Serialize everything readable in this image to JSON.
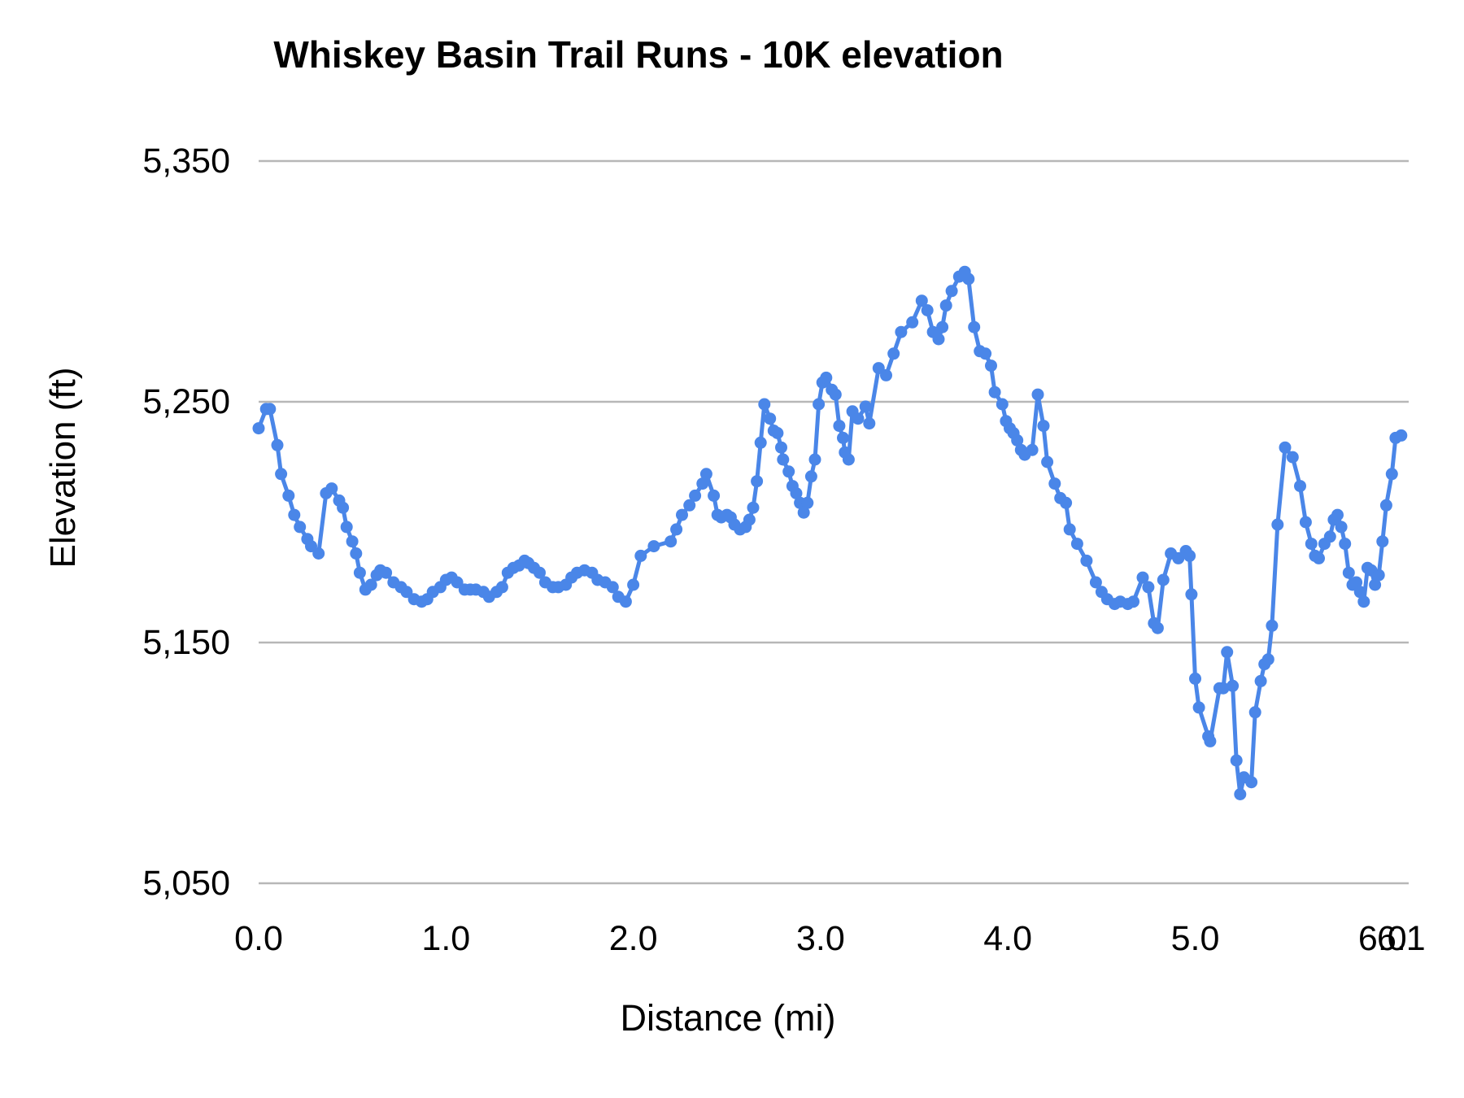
{
  "chart_data": {
    "type": "line",
    "title": "Whiskey Basin Trail Runs - 10K elevation",
    "xlabel": "Distance (mi)",
    "ylabel": "Elevation (ft)",
    "xlim": [
      0,
      6.1
    ],
    "ylim": [
      5050,
      5350
    ],
    "grid": "horizontal",
    "legend": "none",
    "series_color": "#4a86e8",
    "gridline_color": "#b7b7b7",
    "x_ticks": [
      {
        "value": 0,
        "label": "0.0"
      },
      {
        "value": 1,
        "label": "1.0"
      },
      {
        "value": 2,
        "label": "2.0"
      },
      {
        "value": 3,
        "label": "3.0"
      },
      {
        "value": 4,
        "label": "4.0"
      },
      {
        "value": 5,
        "label": "5.0"
      },
      {
        "value": 6,
        "label": "6.0"
      },
      {
        "value": 6.1,
        "label": "6.1"
      }
    ],
    "y_ticks": [
      {
        "value": 5050,
        "label": "5,050"
      },
      {
        "value": 5150,
        "label": "5,150"
      },
      {
        "value": 5250,
        "label": "5,250"
      },
      {
        "value": 5350,
        "label": "5,350"
      }
    ],
    "points": [
      [
        0.0,
        5239
      ],
      [
        0.04,
        5247
      ],
      [
        0.06,
        5247
      ],
      [
        0.1,
        5232
      ],
      [
        0.12,
        5220
      ],
      [
        0.16,
        5211
      ],
      [
        0.19,
        5203
      ],
      [
        0.22,
        5198
      ],
      [
        0.26,
        5193
      ],
      [
        0.28,
        5190
      ],
      [
        0.32,
        5187
      ],
      [
        0.36,
        5212
      ],
      [
        0.39,
        5214
      ],
      [
        0.43,
        5209
      ],
      [
        0.45,
        5206
      ],
      [
        0.47,
        5198
      ],
      [
        0.5,
        5192
      ],
      [
        0.52,
        5187
      ],
      [
        0.54,
        5179
      ],
      [
        0.57,
        5172
      ],
      [
        0.6,
        5174
      ],
      [
        0.63,
        5178
      ],
      [
        0.65,
        5180
      ],
      [
        0.68,
        5179
      ],
      [
        0.72,
        5175
      ],
      [
        0.76,
        5173
      ],
      [
        0.79,
        5171
      ],
      [
        0.83,
        5168
      ],
      [
        0.87,
        5167
      ],
      [
        0.9,
        5168
      ],
      [
        0.93,
        5171
      ],
      [
        0.97,
        5173
      ],
      [
        1.0,
        5176
      ],
      [
        1.03,
        5177
      ],
      [
        1.06,
        5175
      ],
      [
        1.1,
        5172
      ],
      [
        1.13,
        5172
      ],
      [
        1.16,
        5172
      ],
      [
        1.2,
        5171
      ],
      [
        1.23,
        5169
      ],
      [
        1.27,
        5171
      ],
      [
        1.3,
        5173
      ],
      [
        1.33,
        5179
      ],
      [
        1.36,
        5181
      ],
      [
        1.39,
        5182
      ],
      [
        1.42,
        5184
      ],
      [
        1.44,
        5183
      ],
      [
        1.47,
        5181
      ],
      [
        1.5,
        5179
      ],
      [
        1.53,
        5175
      ],
      [
        1.57,
        5173
      ],
      [
        1.6,
        5173
      ],
      [
        1.64,
        5174
      ],
      [
        1.67,
        5177
      ],
      [
        1.7,
        5179
      ],
      [
        1.74,
        5180
      ],
      [
        1.78,
        5179
      ],
      [
        1.81,
        5176
      ],
      [
        1.85,
        5175
      ],
      [
        1.89,
        5173
      ],
      [
        1.92,
        5169
      ],
      [
        1.96,
        5167
      ],
      [
        2.0,
        5174
      ],
      [
        2.04,
        5186
      ],
      [
        2.11,
        5190
      ],
      [
        2.2,
        5192
      ],
      [
        2.23,
        5197
      ],
      [
        2.26,
        5203
      ],
      [
        2.3,
        5207
      ],
      [
        2.33,
        5211
      ],
      [
        2.37,
        5216
      ],
      [
        2.39,
        5220
      ],
      [
        2.43,
        5211
      ],
      [
        2.45,
        5203
      ],
      [
        2.47,
        5202
      ],
      [
        2.5,
        5203
      ],
      [
        2.52,
        5202
      ],
      [
        2.54,
        5199
      ],
      [
        2.57,
        5197
      ],
      [
        2.6,
        5198
      ],
      [
        2.62,
        5201
      ],
      [
        2.64,
        5206
      ],
      [
        2.66,
        5217
      ],
      [
        2.68,
        5233
      ],
      [
        2.7,
        5249
      ],
      [
        2.73,
        5243
      ],
      [
        2.75,
        5238
      ],
      [
        2.77,
        5237
      ],
      [
        2.79,
        5231
      ],
      [
        2.8,
        5226
      ],
      [
        2.83,
        5221
      ],
      [
        2.85,
        5215
      ],
      [
        2.87,
        5212
      ],
      [
        2.89,
        5208
      ],
      [
        2.91,
        5204
      ],
      [
        2.93,
        5208
      ],
      [
        2.95,
        5219
      ],
      [
        2.97,
        5226
      ],
      [
        2.99,
        5249
      ],
      [
        3.01,
        5258
      ],
      [
        3.03,
        5260
      ],
      [
        3.06,
        5255
      ],
      [
        3.08,
        5253
      ],
      [
        3.1,
        5240
      ],
      [
        3.12,
        5235
      ],
      [
        3.13,
        5229
      ],
      [
        3.15,
        5226
      ],
      [
        3.17,
        5246
      ],
      [
        3.2,
        5243
      ],
      [
        3.24,
        5248
      ],
      [
        3.26,
        5241
      ],
      [
        3.31,
        5264
      ],
      [
        3.35,
        5261
      ],
      [
        3.39,
        5270
      ],
      [
        3.43,
        5279
      ],
      [
        3.49,
        5283
      ],
      [
        3.54,
        5292
      ],
      [
        3.57,
        5288
      ],
      [
        3.6,
        5279
      ],
      [
        3.63,
        5276
      ],
      [
        3.65,
        5281
      ],
      [
        3.67,
        5290
      ],
      [
        3.7,
        5296
      ],
      [
        3.74,
        5302
      ],
      [
        3.77,
        5304
      ],
      [
        3.79,
        5301
      ],
      [
        3.82,
        5281
      ],
      [
        3.85,
        5271
      ],
      [
        3.88,
        5270
      ],
      [
        3.91,
        5265
      ],
      [
        3.93,
        5254
      ],
      [
        3.97,
        5249
      ],
      [
        3.99,
        5242
      ],
      [
        4.01,
        5239
      ],
      [
        4.03,
        5237
      ],
      [
        4.05,
        5234
      ],
      [
        4.07,
        5230
      ],
      [
        4.09,
        5228
      ],
      [
        4.13,
        5230
      ],
      [
        4.16,
        5253
      ],
      [
        4.19,
        5240
      ],
      [
        4.21,
        5225
      ],
      [
        4.25,
        5216
      ],
      [
        4.28,
        5210
      ],
      [
        4.31,
        5208
      ],
      [
        4.33,
        5197
      ],
      [
        4.37,
        5191
      ],
      [
        4.42,
        5184
      ],
      [
        4.47,
        5175
      ],
      [
        4.5,
        5171
      ],
      [
        4.53,
        5168
      ],
      [
        4.57,
        5166
      ],
      [
        4.6,
        5167
      ],
      [
        4.64,
        5166
      ],
      [
        4.67,
        5167
      ],
      [
        4.72,
        5177
      ],
      [
        4.75,
        5173
      ],
      [
        4.78,
        5158
      ],
      [
        4.8,
        5156
      ],
      [
        4.83,
        5176
      ],
      [
        4.87,
        5187
      ],
      [
        4.91,
        5185
      ],
      [
        4.95,
        5188
      ],
      [
        4.97,
        5186
      ],
      [
        4.98,
        5170
      ],
      [
        5.0,
        5135
      ],
      [
        5.02,
        5123
      ],
      [
        5.07,
        5111
      ],
      [
        5.08,
        5109
      ],
      [
        5.13,
        5131
      ],
      [
        5.15,
        5131
      ],
      [
        5.17,
        5146
      ],
      [
        5.2,
        5132
      ],
      [
        5.22,
        5101
      ],
      [
        5.24,
        5087
      ],
      [
        5.26,
        5094
      ],
      [
        5.3,
        5092
      ],
      [
        5.32,
        5121
      ],
      [
        5.35,
        5134
      ],
      [
        5.37,
        5141
      ],
      [
        5.39,
        5143
      ],
      [
        5.41,
        5157
      ],
      [
        5.44,
        5199
      ],
      [
        5.48,
        5231
      ],
      [
        5.52,
        5227
      ],
      [
        5.56,
        5215
      ],
      [
        5.59,
        5200
      ],
      [
        5.62,
        5191
      ],
      [
        5.64,
        5186
      ],
      [
        5.66,
        5185
      ],
      [
        5.69,
        5191
      ],
      [
        5.72,
        5194
      ],
      [
        5.74,
        5201
      ],
      [
        5.76,
        5203
      ],
      [
        5.78,
        5198
      ],
      [
        5.8,
        5191
      ],
      [
        5.82,
        5179
      ],
      [
        5.84,
        5174
      ],
      [
        5.86,
        5175
      ],
      [
        5.88,
        5171
      ],
      [
        5.9,
        5167
      ],
      [
        5.92,
        5181
      ],
      [
        5.94,
        5180
      ],
      [
        5.96,
        5174
      ],
      [
        5.98,
        5178
      ],
      [
        6.0,
        5192
      ],
      [
        6.02,
        5207
      ],
      [
        6.05,
        5220
      ],
      [
        6.07,
        5235
      ],
      [
        6.1,
        5236
      ]
    ]
  }
}
